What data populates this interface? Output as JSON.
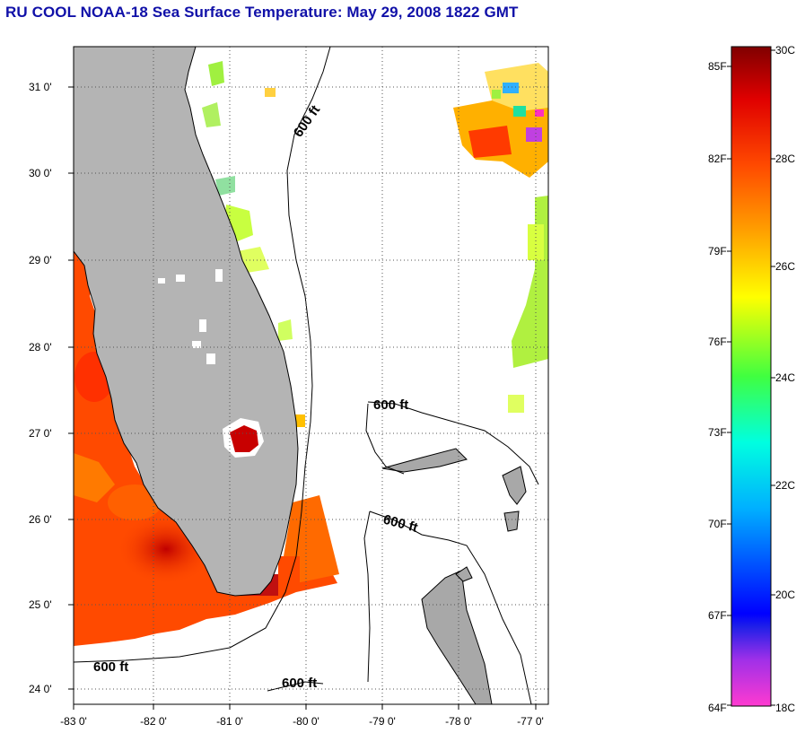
{
  "title": "RU COOL  NOAA-18  Sea Surface Temperature:  May 29, 2008 1822 GMT",
  "map": {
    "lon_ticks": [
      "-83 0'",
      "-82 0'",
      "-81 0'",
      "-80 0'",
      "-79 0'",
      "-78 0'",
      "-77 0'"
    ],
    "lat_ticks": [
      "31 0'",
      "30 0'",
      "29 0'",
      "28 0'",
      "27 0'",
      "26 0'",
      "25 0'",
      "24 0'"
    ],
    "contour_label": "600 ft",
    "colors": {
      "land": "#b4b4b4",
      "ocean": "#ffffff",
      "gulf_warm": "#ff4a00"
    }
  },
  "colorbar": {
    "f_labels": [
      "85F",
      "82F",
      "79F",
      "76F",
      "73F",
      "70F",
      "67F",
      "64F"
    ],
    "c_labels": [
      "30C",
      "28C",
      "26C",
      "24C",
      "22C",
      "20C",
      "18C"
    ]
  }
}
